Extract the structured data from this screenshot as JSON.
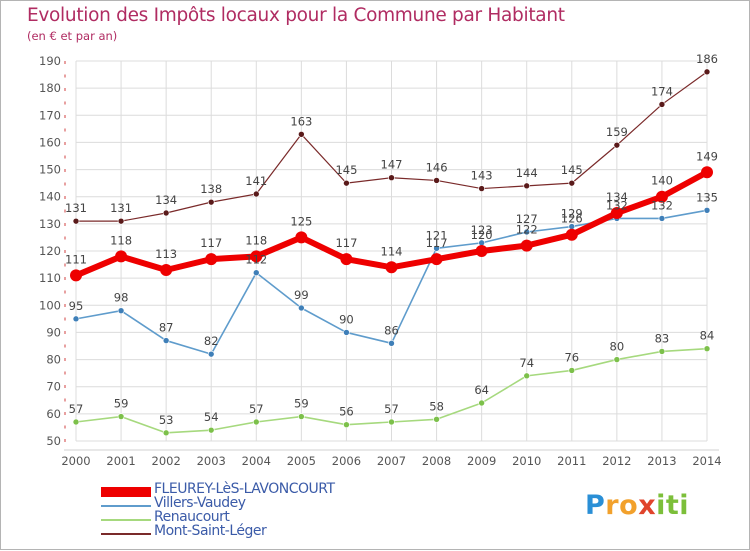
{
  "title": "Evolution des Impôts locaux pour la Commune par Habitant",
  "subtitle": "(en € et par an)",
  "brand": {
    "text": "Proxiti",
    "letters": [
      "P",
      "r",
      "o",
      "x",
      "i",
      "t",
      "i"
    ],
    "letter_colors": [
      "#2a8fd6",
      "#f2a12c",
      "#f2a12c",
      "#e0442c",
      "#7cbf3a",
      "#7cbf3a",
      "#7cbf3a"
    ]
  },
  "colors": {
    "title": "#b02c62",
    "axis_text": "#555555",
    "grid": "#dcdcdc",
    "legend_text": "#3b5ba8"
  },
  "legend": [
    {
      "name": "FLEUREY-LèS-LAVONCOURT",
      "color": "#ee0000"
    },
    {
      "name": "Villers-Vaudey",
      "color": "#5f9ccc"
    },
    {
      "name": "Renaucourt",
      "color": "#a6d97e"
    },
    {
      "name": "Mont-Saint-Léger",
      "color": "#7a2a2a"
    }
  ],
  "chart_data": {
    "type": "line",
    "title": "Evolution des Impôts locaux pour la Commune par Habitant",
    "subtitle": "(en € et par an)",
    "xlabel": "",
    "ylabel": "",
    "x": [
      "2000",
      "2001",
      "2002",
      "2003",
      "2004",
      "2005",
      "2006",
      "2007",
      "2008",
      "2009",
      "2010",
      "2011",
      "2012",
      "2013",
      "2014"
    ],
    "ylim": [
      50,
      190
    ],
    "yticks": [
      50,
      60,
      70,
      80,
      90,
      100,
      110,
      120,
      130,
      140,
      150,
      160,
      170,
      180,
      190
    ],
    "grid": true,
    "legend_position": "bottom-left",
    "series": [
      {
        "name": "Mont-Saint-Léger",
        "color": "#7a2a2a",
        "marker": "#5a1a1a",
        "width": 1.2,
        "marker_r": 3,
        "values": [
          131,
          131,
          134,
          138,
          141,
          163,
          145,
          147,
          146,
          143,
          144,
          145,
          159,
          174,
          186
        ],
        "labels": [
          "131",
          "131",
          "134",
          "138",
          "141",
          "163",
          "145",
          "147",
          "146",
          "143",
          "144",
          "145",
          "159",
          "174",
          "186"
        ]
      },
      {
        "name": "Renaucourt",
        "color": "#a6d97e",
        "marker": "#7cc04a",
        "width": 1.6,
        "marker_r": 3,
        "values": [
          57,
          59,
          53,
          54,
          57,
          59,
          56,
          57,
          58,
          64,
          74,
          76,
          80,
          83,
          84
        ],
        "labels": [
          "57",
          "59",
          "53",
          "54",
          "57",
          "59",
          "56",
          "57",
          "58",
          "64",
          "74",
          "76",
          "80",
          "83",
          "84"
        ]
      },
      {
        "name": "Villers-Vaudey",
        "color": "#5f9ccc",
        "marker": "#3f7fb8",
        "width": 1.6,
        "marker_r": 3,
        "values": [
          95,
          98,
          87,
          82,
          112,
          99,
          90,
          86,
          121,
          123,
          127,
          129,
          132,
          132,
          135
        ],
        "labels": [
          "95",
          "98",
          "87",
          "82",
          "112",
          "99",
          "90",
          "86",
          "121",
          "123",
          "127",
          "129",
          "132",
          "132",
          "135"
        ]
      },
      {
        "name": "FLEUREY-LèS-LAVONCOURT",
        "color": "#ee0000",
        "marker": "#ee0000",
        "width": 6,
        "marker_r": 6,
        "values": [
          111,
          118,
          113,
          117,
          118,
          125,
          117,
          114,
          117,
          120,
          122,
          126,
          134,
          140,
          149
        ],
        "labels": [
          "111",
          "118",
          "113",
          "117",
          "118",
          "125",
          "117",
          "114",
          "117",
          "120",
          "122",
          "126",
          "134",
          "140",
          "149"
        ]
      }
    ]
  }
}
